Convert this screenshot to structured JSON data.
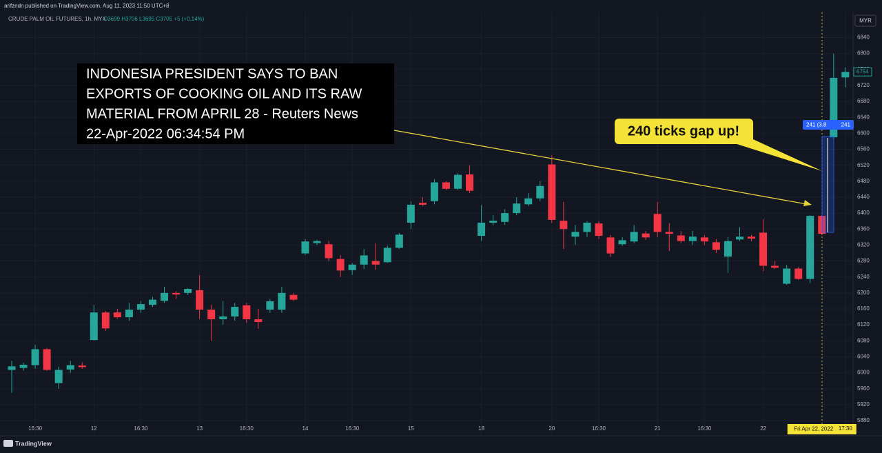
{
  "chart_data": {
    "type": "candlestick",
    "publisher": "arifzndn published on TradingView.com, Aug 11, 2023 11:50 UTC+8",
    "symbol": "CRUDE PALM OIL FUTURES, 1h, MYX",
    "ohlc_legend": "O3699 H3706 L3695 C3705 +5 (+0.14%)",
    "currency": "MYR",
    "brand": "TradingView",
    "annotation": [
      "INDONESIA PRESIDENT SAYS TO BAN",
      "EXPORTS OF COOKING OIL AND ITS RAW",
      "MATERIAL FROM APRIL 28 - Reuters News",
      "22-Apr-2022 06:34:54 PM"
    ],
    "callout": "240 ticks gap up!",
    "measure_labels": [
      "241 (3.8",
      "241"
    ],
    "crosshair": {
      "index": 69,
      "label": "Fri Apr 22, 2022"
    },
    "up_color": "#26a69a",
    "down_color": "#f23645",
    "grid": true,
    "categories": [
      null,
      null,
      "16:30",
      null,
      null,
      null,
      null,
      "12",
      null,
      null,
      null,
      "16:30",
      null,
      null,
      null,
      null,
      "13",
      null,
      null,
      null,
      "16:30",
      null,
      null,
      null,
      null,
      "14",
      null,
      null,
      null,
      "16:30",
      null,
      null,
      null,
      null,
      "15",
      null,
      null,
      null,
      null,
      null,
      "18",
      null,
      null,
      null,
      null,
      null,
      "20",
      null,
      null,
      null,
      "16:30",
      null,
      null,
      null,
      null,
      "21",
      null,
      null,
      null,
      "16:30",
      null,
      null,
      null,
      null,
      "22",
      null,
      null,
      null,
      null,
      null,
      null,
      "17:30"
    ],
    "open": [
      6007,
      6012,
      6019,
      6059,
      5974,
      6008,
      6018,
      6082,
      6151,
      6151,
      6139,
      6158,
      6170,
      6180,
      6200,
      6200,
      6207,
      6158,
      6134,
      6141,
      6169,
      6134,
      6158,
      6158,
      6195,
      6299,
      6325,
      6322,
      6285,
      6257,
      6271,
      6280,
      6277,
      6313,
      6376,
      6426,
      6430,
      6477,
      6461,
      6497,
      6343,
      6376,
      6378,
      6400,
      6422,
      6437,
      6522,
      6381,
      6341,
      6353,
      6374,
      6339,
      6322,
      6329,
      6349,
      6398,
      6353,
      6344,
      6330,
      6339,
      6327,
      6291,
      6334,
      6341,
      6351,
      6268,
      6223,
      6261,
      6235,
      6393,
      6590,
      6740
    ],
    "high": [
      6030,
      6025,
      6070,
      6062,
      6015,
      6030,
      6026,
      6170,
      6155,
      6160,
      6175,
      6180,
      6190,
      6215,
      6205,
      6212,
      6245,
      6170,
      6180,
      6175,
      6175,
      6160,
      6185,
      6215,
      6200,
      6335,
      6333,
      6330,
      6295,
      6275,
      6310,
      6325,
      6318,
      6350,
      6430,
      6440,
      6485,
      6480,
      6500,
      6520,
      6420,
      6395,
      6410,
      6440,
      6450,
      6480,
      6545,
      6428,
      6370,
      6380,
      6380,
      6345,
      6340,
      6370,
      6355,
      6428,
      6375,
      6355,
      6355,
      6345,
      6335,
      6340,
      6365,
      6345,
      6385,
      6280,
      6270,
      6265,
      6395,
      6395,
      6800,
      6765
    ],
    "low": [
      5950,
      6005,
      6010,
      6005,
      5960,
      6000,
      6010,
      6080,
      6105,
      6135,
      6130,
      6150,
      6165,
      6175,
      6185,
      6195,
      6135,
      6080,
      6120,
      6130,
      6125,
      6110,
      6150,
      6150,
      6180,
      6295,
      6320,
      6280,
      6240,
      6245,
      6260,
      6258,
      6275,
      6310,
      6360,
      6418,
      6422,
      6458,
      6458,
      6450,
      6330,
      6370,
      6370,
      6395,
      6418,
      6430,
      6375,
      6310,
      6320,
      6340,
      6335,
      6290,
      6318,
      6325,
      6333,
      6340,
      6305,
      6325,
      6320,
      6320,
      6300,
      6250,
      6330,
      6330,
      6255,
      6260,
      6220,
      6233,
      6225,
      6345,
      6585,
      6715
    ],
    "close": [
      6016,
      6020,
      6059,
      6007,
      6007,
      6019,
      6014,
      6151,
      6111,
      6139,
      6158,
      6172,
      6183,
      6200,
      6196,
      6210,
      6158,
      6134,
      6141,
      6165,
      6134,
      6127,
      6179,
      6200,
      6183,
      6329,
      6330,
      6287,
      6256,
      6271,
      6294,
      6271,
      6313,
      6346,
      6421,
      6421,
      6477,
      6461,
      6496,
      6456,
      6376,
      6381,
      6400,
      6424,
      6437,
      6468,
      6383,
      6360,
      6353,
      6376,
      6343,
      6299,
      6332,
      6353,
      6339,
      6353,
      6348,
      6330,
      6341,
      6329,
      6308,
      6330,
      6341,
      6336,
      6268,
      6263,
      6261,
      6235,
      6393,
      6348,
      6739,
      6754
    ],
    "ylim": [
      5842,
      6903
    ],
    "yticks": [
      5880,
      5920,
      5960,
      6000,
      6040,
      6080,
      6120,
      6160,
      6200,
      6240,
      6280,
      6320,
      6360,
      6400,
      6440,
      6480,
      6520,
      6560,
      6600,
      6640,
      6680,
      6720,
      6760,
      6800,
      6840
    ]
  }
}
